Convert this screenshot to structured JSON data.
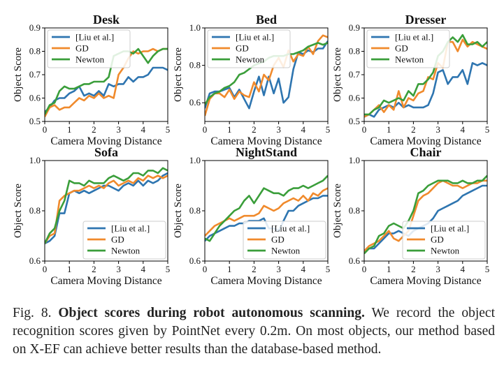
{
  "colors": {
    "liu": "#2e75b0",
    "gd": "#f08a2c",
    "newton": "#3a9e3a"
  },
  "chart_data": [
    {
      "type": "line",
      "title": "Desk",
      "xlabel": "Camera Moving Distance",
      "ylabel": "Object Score",
      "xlim": [
        0,
        5
      ],
      "ylim": [
        0.5,
        0.9
      ],
      "xticks": [
        "0",
        "1",
        "2",
        "3",
        "4",
        "5"
      ],
      "yticks": [
        "0.5",
        "0.6",
        "0.7",
        "0.8",
        "0.9"
      ],
      "legend": "top-left",
      "x": [
        0,
        0.2,
        0.4,
        0.6,
        0.8,
        1.0,
        1.2,
        1.4,
        1.6,
        1.8,
        2.0,
        2.2,
        2.4,
        2.6,
        2.8,
        3.0,
        3.2,
        3.4,
        3.6,
        3.8,
        4.0,
        4.2,
        4.4,
        4.6,
        4.8,
        5.0
      ],
      "series": [
        {
          "name": "[Liu et al.]",
          "values": [
            0.54,
            0.56,
            0.59,
            0.6,
            0.6,
            0.62,
            0.63,
            0.65,
            0.61,
            0.62,
            0.61,
            0.63,
            0.61,
            0.66,
            0.65,
            0.66,
            0.66,
            0.69,
            0.67,
            0.69,
            0.69,
            0.7,
            0.73,
            0.73,
            0.73,
            0.72
          ]
        },
        {
          "name": "GD",
          "values": [
            0.52,
            0.56,
            0.57,
            0.55,
            0.56,
            0.56,
            0.58,
            0.6,
            0.59,
            0.61,
            0.6,
            0.62,
            0.6,
            0.61,
            0.6,
            0.7,
            0.73,
            0.77,
            0.8,
            0.79,
            0.8,
            0.8,
            0.81,
            0.8,
            0.81,
            0.81
          ]
        },
        {
          "name": "Newton",
          "values": [
            0.53,
            0.57,
            0.58,
            0.63,
            0.65,
            0.64,
            0.64,
            0.65,
            0.66,
            0.66,
            0.67,
            0.67,
            0.67,
            0.69,
            0.78,
            0.79,
            0.8,
            0.8,
            0.79,
            0.81,
            0.78,
            0.75,
            0.78,
            0.8,
            0.81,
            0.81
          ]
        }
      ]
    },
    {
      "type": "line",
      "title": "Bed",
      "xlabel": "Camera Moving Distance",
      "ylabel": "Object Score",
      "xlim": [
        0,
        5
      ],
      "ylim": [
        0.5,
        1.0
      ],
      "xticks": [
        "0",
        "1",
        "2",
        "3",
        "4",
        "5"
      ],
      "yticks": [
        "0.6",
        "0.8",
        "1.0"
      ],
      "legend": "top-left",
      "x": [
        0,
        0.2,
        0.4,
        0.6,
        0.8,
        1.0,
        1.2,
        1.4,
        1.6,
        1.8,
        2.0,
        2.2,
        2.4,
        2.6,
        2.8,
        3.0,
        3.2,
        3.4,
        3.6,
        3.8,
        4.0,
        4.2,
        4.4,
        4.6,
        4.8,
        5.0
      ],
      "series": [
        {
          "name": "[Liu et al.]",
          "values": [
            0.57,
            0.65,
            0.66,
            0.66,
            0.67,
            0.68,
            0.63,
            0.67,
            0.62,
            0.57,
            0.66,
            0.74,
            0.64,
            0.74,
            0.65,
            0.73,
            0.6,
            0.63,
            0.78,
            0.87,
            0.86,
            0.88,
            0.87,
            0.89,
            0.89,
            0.93
          ]
        },
        {
          "name": "GD",
          "values": [
            0.53,
            0.62,
            0.65,
            0.65,
            0.63,
            0.67,
            0.62,
            0.66,
            0.64,
            0.63,
            0.71,
            0.66,
            0.75,
            0.72,
            0.8,
            0.84,
            0.79,
            0.88,
            0.82,
            0.86,
            0.85,
            0.9,
            0.86,
            0.93,
            0.96,
            0.95
          ]
        },
        {
          "name": "Newton",
          "values": [
            0.59,
            0.63,
            0.65,
            0.66,
            0.68,
            0.69,
            0.71,
            0.75,
            0.76,
            0.78,
            0.8,
            0.81,
            0.82,
            0.84,
            0.85,
            0.85,
            0.85,
            0.86,
            0.86,
            0.87,
            0.88,
            0.9,
            0.91,
            0.92,
            0.91,
            0.92
          ]
        }
      ]
    },
    {
      "type": "line",
      "title": "Dresser",
      "xlabel": "Camera Moving Distance",
      "ylabel": "Object Score",
      "xlim": [
        0,
        5
      ],
      "ylim": [
        0.5,
        0.9
      ],
      "xticks": [
        "0",
        "1",
        "2",
        "3",
        "4",
        "5"
      ],
      "yticks": [
        "0.5",
        "0.6",
        "0.7",
        "0.8",
        "0.9"
      ],
      "legend": "top-left",
      "x": [
        0,
        0.2,
        0.4,
        0.6,
        0.8,
        1.0,
        1.2,
        1.4,
        1.6,
        1.8,
        2.0,
        2.2,
        2.4,
        2.6,
        2.8,
        3.0,
        3.2,
        3.4,
        3.6,
        3.8,
        4.0,
        4.2,
        4.4,
        4.6,
        4.8,
        5.0
      ],
      "series": [
        {
          "name": "[Liu et al.]",
          "values": [
            0.52,
            0.53,
            0.52,
            0.55,
            0.56,
            0.57,
            0.56,
            0.58,
            0.56,
            0.57,
            0.56,
            0.56,
            0.56,
            0.57,
            0.62,
            0.71,
            0.72,
            0.66,
            0.69,
            0.69,
            0.72,
            0.66,
            0.75,
            0.74,
            0.75,
            0.74
          ]
        },
        {
          "name": "GD",
          "values": [
            0.52,
            0.53,
            0.55,
            0.57,
            0.54,
            0.57,
            0.55,
            0.63,
            0.56,
            0.6,
            0.59,
            0.62,
            0.63,
            0.69,
            0.68,
            0.75,
            0.73,
            0.84,
            0.84,
            0.8,
            0.85,
            0.82,
            0.84,
            0.83,
            0.82,
            0.81
          ]
        },
        {
          "name": "Newton",
          "values": [
            0.53,
            0.53,
            0.55,
            0.56,
            0.59,
            0.58,
            0.59,
            0.6,
            0.59,
            0.63,
            0.61,
            0.66,
            0.66,
            0.68,
            0.71,
            0.78,
            0.8,
            0.84,
            0.86,
            0.84,
            0.87,
            0.83,
            0.83,
            0.84,
            0.82,
            0.84
          ]
        }
      ]
    },
    {
      "type": "line",
      "title": "Sofa",
      "xlabel": "Camera Moving Distance",
      "ylabel": "Object Score",
      "xlim": [
        0,
        5
      ],
      "ylim": [
        0.6,
        1.0
      ],
      "xticks": [
        "0",
        "1",
        "2",
        "3",
        "4",
        "5"
      ],
      "yticks": [
        "0.6",
        "0.8",
        "1.0"
      ],
      "legend": "bottom-right",
      "x": [
        0,
        0.2,
        0.4,
        0.6,
        0.8,
        1.0,
        1.2,
        1.4,
        1.6,
        1.8,
        2.0,
        2.2,
        2.4,
        2.6,
        2.8,
        3.0,
        3.2,
        3.4,
        3.6,
        3.8,
        4.0,
        4.2,
        4.4,
        4.6,
        4.8,
        5.0
      ],
      "series": [
        {
          "name": "[Liu et al.]",
          "values": [
            0.67,
            0.68,
            0.7,
            0.79,
            0.79,
            0.87,
            0.88,
            0.87,
            0.88,
            0.87,
            0.88,
            0.89,
            0.9,
            0.9,
            0.89,
            0.88,
            0.9,
            0.91,
            0.9,
            0.92,
            0.9,
            0.92,
            0.91,
            0.92,
            0.94,
            0.95
          ]
        },
        {
          "name": "GD",
          "values": [
            0.67,
            0.7,
            0.71,
            0.84,
            0.86,
            0.87,
            0.88,
            0.88,
            0.89,
            0.9,
            0.89,
            0.9,
            0.89,
            0.91,
            0.92,
            0.9,
            0.91,
            0.92,
            0.91,
            0.93,
            0.92,
            0.94,
            0.93,
            0.94,
            0.93,
            0.94
          ]
        },
        {
          "name": "Newton",
          "values": [
            0.67,
            0.71,
            0.73,
            0.8,
            0.84,
            0.92,
            0.91,
            0.91,
            0.9,
            0.92,
            0.91,
            0.91,
            0.91,
            0.93,
            0.94,
            0.93,
            0.92,
            0.93,
            0.95,
            0.95,
            0.94,
            0.96,
            0.96,
            0.95,
            0.97,
            0.96
          ]
        }
      ]
    },
    {
      "type": "line",
      "title": "NightStand",
      "xlabel": "Camera Moving Distance",
      "ylabel": "Object Score",
      "xlim": [
        0,
        5
      ],
      "ylim": [
        0.6,
        1.0
      ],
      "xticks": [
        "0",
        "1",
        "2",
        "3",
        "4",
        "5"
      ],
      "yticks": [
        "0.6",
        "0.8",
        "1.0"
      ],
      "legend": "bottom-right",
      "x": [
        0,
        0.2,
        0.4,
        0.6,
        0.8,
        1.0,
        1.2,
        1.4,
        1.6,
        1.8,
        2.0,
        2.2,
        2.4,
        2.6,
        2.8,
        3.0,
        3.2,
        3.4,
        3.6,
        3.8,
        4.0,
        4.2,
        4.4,
        4.6,
        4.8,
        5.0
      ],
      "series": [
        {
          "name": "[Liu et al.]",
          "values": [
            0.68,
            0.7,
            0.71,
            0.72,
            0.73,
            0.74,
            0.74,
            0.75,
            0.75,
            0.76,
            0.76,
            0.76,
            0.77,
            0.73,
            0.73,
            0.72,
            0.76,
            0.8,
            0.8,
            0.82,
            0.83,
            0.84,
            0.85,
            0.85,
            0.86,
            0.86
          ]
        },
        {
          "name": "GD",
          "values": [
            0.7,
            0.72,
            0.74,
            0.75,
            0.76,
            0.77,
            0.76,
            0.77,
            0.78,
            0.78,
            0.78,
            0.79,
            0.82,
            0.81,
            0.8,
            0.81,
            0.83,
            0.84,
            0.85,
            0.84,
            0.86,
            0.84,
            0.87,
            0.86,
            0.88,
            0.89
          ]
        },
        {
          "name": "Newton",
          "values": [
            0.69,
            0.68,
            0.71,
            0.74,
            0.76,
            0.78,
            0.8,
            0.81,
            0.84,
            0.86,
            0.83,
            0.86,
            0.89,
            0.88,
            0.87,
            0.87,
            0.86,
            0.88,
            0.89,
            0.89,
            0.9,
            0.89,
            0.9,
            0.91,
            0.92,
            0.94
          ]
        }
      ]
    },
    {
      "type": "line",
      "title": "Chair",
      "xlabel": "Camera Moving Distance",
      "ylabel": "Object Score",
      "xlim": [
        0,
        5
      ],
      "ylim": [
        0.6,
        1.0
      ],
      "xticks": [
        "0",
        "1",
        "2",
        "3",
        "4",
        "5"
      ],
      "yticks": [
        "0.6",
        "0.8",
        "1.0"
      ],
      "legend": "bottom-right",
      "x": [
        0,
        0.2,
        0.4,
        0.6,
        0.8,
        1.0,
        1.2,
        1.4,
        1.6,
        1.8,
        2.0,
        2.2,
        2.4,
        2.6,
        2.8,
        3.0,
        3.2,
        3.4,
        3.6,
        3.8,
        4.0,
        4.2,
        4.4,
        4.6,
        4.8,
        5.0
      ],
      "series": [
        {
          "name": "[Liu et al.]",
          "values": [
            0.64,
            0.65,
            0.65,
            0.67,
            0.69,
            0.71,
            0.71,
            0.72,
            0.71,
            0.7,
            0.72,
            0.73,
            0.74,
            0.75,
            0.77,
            0.8,
            0.81,
            0.82,
            0.83,
            0.84,
            0.86,
            0.87,
            0.88,
            0.89,
            0.9,
            0.9
          ]
        },
        {
          "name": "GD",
          "values": [
            0.64,
            0.66,
            0.67,
            0.68,
            0.7,
            0.72,
            0.69,
            0.68,
            0.7,
            0.72,
            0.78,
            0.84,
            0.86,
            0.87,
            0.89,
            0.91,
            0.92,
            0.91,
            0.9,
            0.9,
            0.89,
            0.9,
            0.91,
            0.91,
            0.92,
            0.92
          ]
        },
        {
          "name": "Newton",
          "values": [
            0.63,
            0.65,
            0.66,
            0.7,
            0.71,
            0.74,
            0.75,
            0.74,
            0.73,
            0.76,
            0.8,
            0.87,
            0.88,
            0.9,
            0.91,
            0.92,
            0.92,
            0.92,
            0.91,
            0.91,
            0.92,
            0.91,
            0.91,
            0.92,
            0.92,
            0.94
          ]
        }
      ]
    }
  ],
  "caption": {
    "prefix": "Fig. 8.",
    "bold": "Object scores during robot autonomous scanning.",
    "body": " We record the object recognition scores given by PointNet every 0.2m. On most objects, our method based on X-EF can achieve better results than the database-based method."
  }
}
